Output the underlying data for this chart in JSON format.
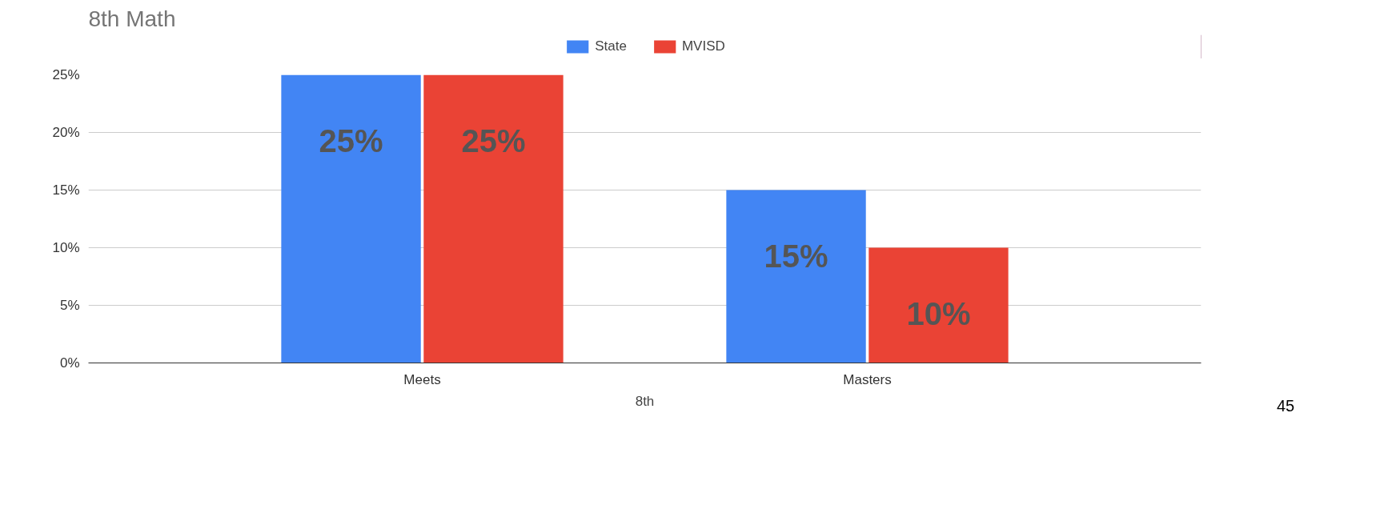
{
  "chart_data": {
    "type": "bar",
    "title": "8th Math",
    "xlabel": "8th",
    "categories": [
      "Meets",
      "Masters"
    ],
    "series": [
      {
        "name": "State",
        "color": "#4285f4",
        "values": [
          25,
          15
        ],
        "value_labels": [
          "25%",
          "15%"
        ]
      },
      {
        "name": "MVISD",
        "color": "#ea4335",
        "values": [
          25,
          10
        ],
        "value_labels": [
          "25%",
          "10%"
        ]
      }
    ],
    "ylim": [
      0,
      25
    ],
    "yticks": [
      {
        "value": 0,
        "label": "0%"
      },
      {
        "value": 5,
        "label": "5%"
      },
      {
        "value": 10,
        "label": "10%"
      },
      {
        "value": 15,
        "label": "15%"
      },
      {
        "value": 20,
        "label": "20%"
      },
      {
        "value": 25,
        "label": "25%"
      }
    ],
    "grid": "y",
    "legend": "top",
    "annotations": [
      "45"
    ]
  }
}
